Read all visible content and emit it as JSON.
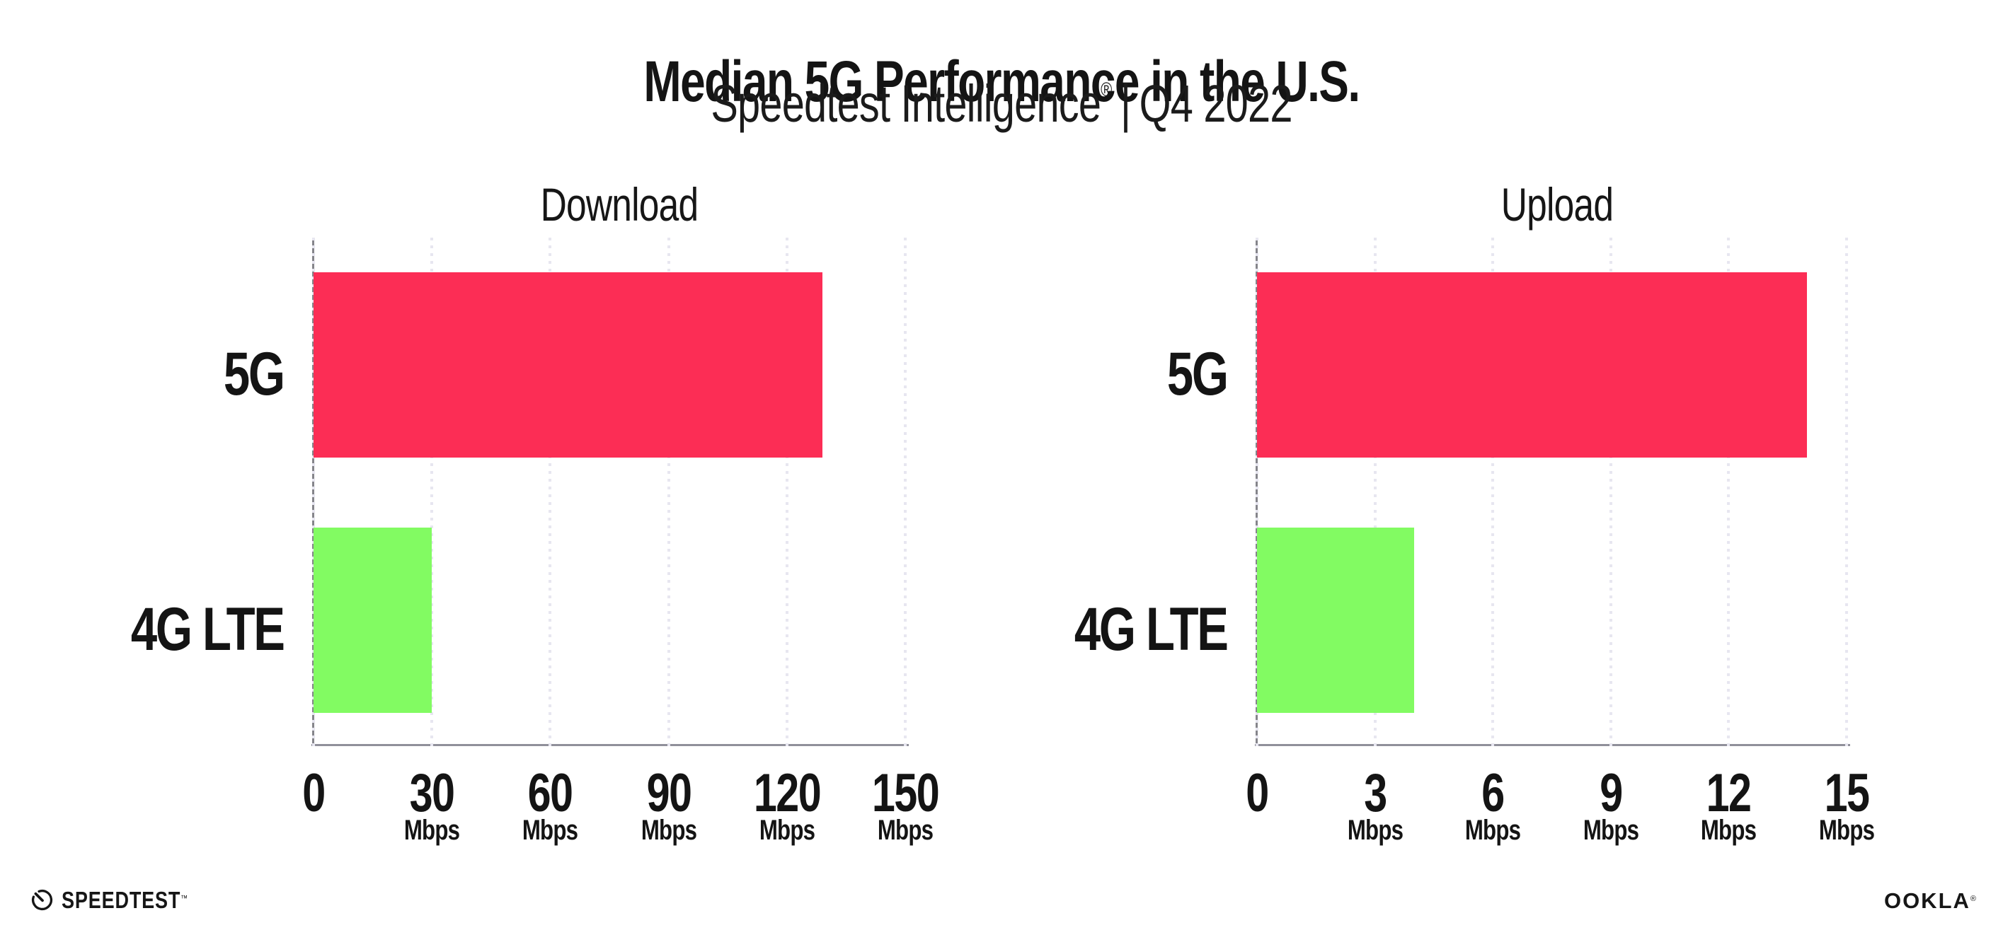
{
  "header": {
    "title": "Median 5G Performance in the U.S.",
    "subtitle_product": "Speedtest Intelligence",
    "subtitle_reg": "®",
    "subtitle_separator": "|",
    "subtitle_period": "Q4 2022"
  },
  "chart_data": [
    {
      "type": "bar",
      "orientation": "horizontal",
      "title": "Download",
      "categories": [
        "5G",
        "4G LTE"
      ],
      "values": [
        129,
        30
      ],
      "unit": "Mbps",
      "xlim": [
        0,
        150
      ],
      "xticks": [
        0,
        30,
        60,
        90,
        120,
        150
      ],
      "xtick_unit_label": "Mbps",
      "bar_colors": [
        "#fc2d55",
        "#82fb62"
      ],
      "grid": "vertical-dotted",
      "legend": "none"
    },
    {
      "type": "bar",
      "orientation": "horizontal",
      "title": "Upload",
      "categories": [
        "5G",
        "4G LTE"
      ],
      "values": [
        14,
        4
      ],
      "unit": "Mbps",
      "xlim": [
        0,
        15
      ],
      "xticks": [
        0,
        3,
        6,
        9,
        12,
        15
      ],
      "xtick_unit_label": "Mbps",
      "bar_colors": [
        "#fc2d55",
        "#82fb62"
      ],
      "grid": "vertical-dotted",
      "legend": "none"
    }
  ],
  "colors": {
    "bar_5g": "#fc2d55",
    "bar_4g_lte": "#82fb62",
    "grid_dot": "#e7e6f0",
    "axis_line": "#8a8a90",
    "text": "#141414"
  },
  "footer": {
    "speedtest_wordmark": "SPEEDTEST",
    "speedtest_mark": "™",
    "ookla_wordmark": "OOKLA",
    "ookla_mark": "®"
  }
}
